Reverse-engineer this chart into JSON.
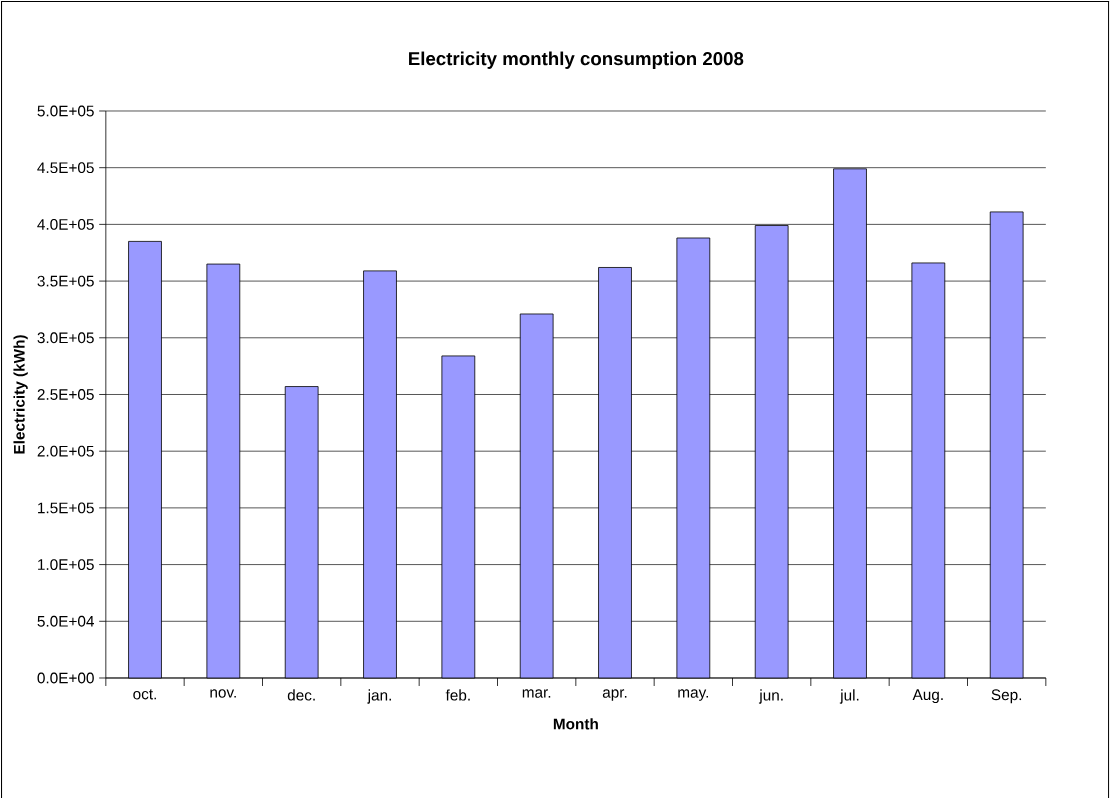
{
  "chart_data": {
    "type": "bar",
    "title": "Electricity monthly consumption 2008",
    "xlabel": "Month",
    "ylabel": "Electricity (kWh)",
    "categories": [
      "oct.",
      "nov.",
      "dec.",
      "jan.",
      "feb.",
      "mar.",
      "apr.",
      "may.",
      "jun.",
      "jul.",
      "Aug.",
      "Sep."
    ],
    "values": [
      385000,
      365000,
      257000,
      359000,
      284000,
      321000,
      362000,
      388000,
      399000,
      449000,
      366000,
      411000
    ],
    "color": "#9999ff",
    "ylim": [
      0,
      500000
    ],
    "yticks": [
      {
        "value": 0,
        "label": "0.0E+00"
      },
      {
        "value": 50000,
        "label": "5.0E+04"
      },
      {
        "value": 100000,
        "label": "1.0E+05"
      },
      {
        "value": 150000,
        "label": "1.5E+05"
      },
      {
        "value": 200000,
        "label": "2.0E+05"
      },
      {
        "value": 250000,
        "label": "2.5E+05"
      },
      {
        "value": 300000,
        "label": "3.0E+05"
      },
      {
        "value": 350000,
        "label": "3.5E+05"
      },
      {
        "value": 400000,
        "label": "4.0E+05"
      },
      {
        "value": 450000,
        "label": "4.5E+05"
      },
      {
        "value": 500000,
        "label": "5.0E+05"
      }
    ],
    "grid": "y"
  }
}
